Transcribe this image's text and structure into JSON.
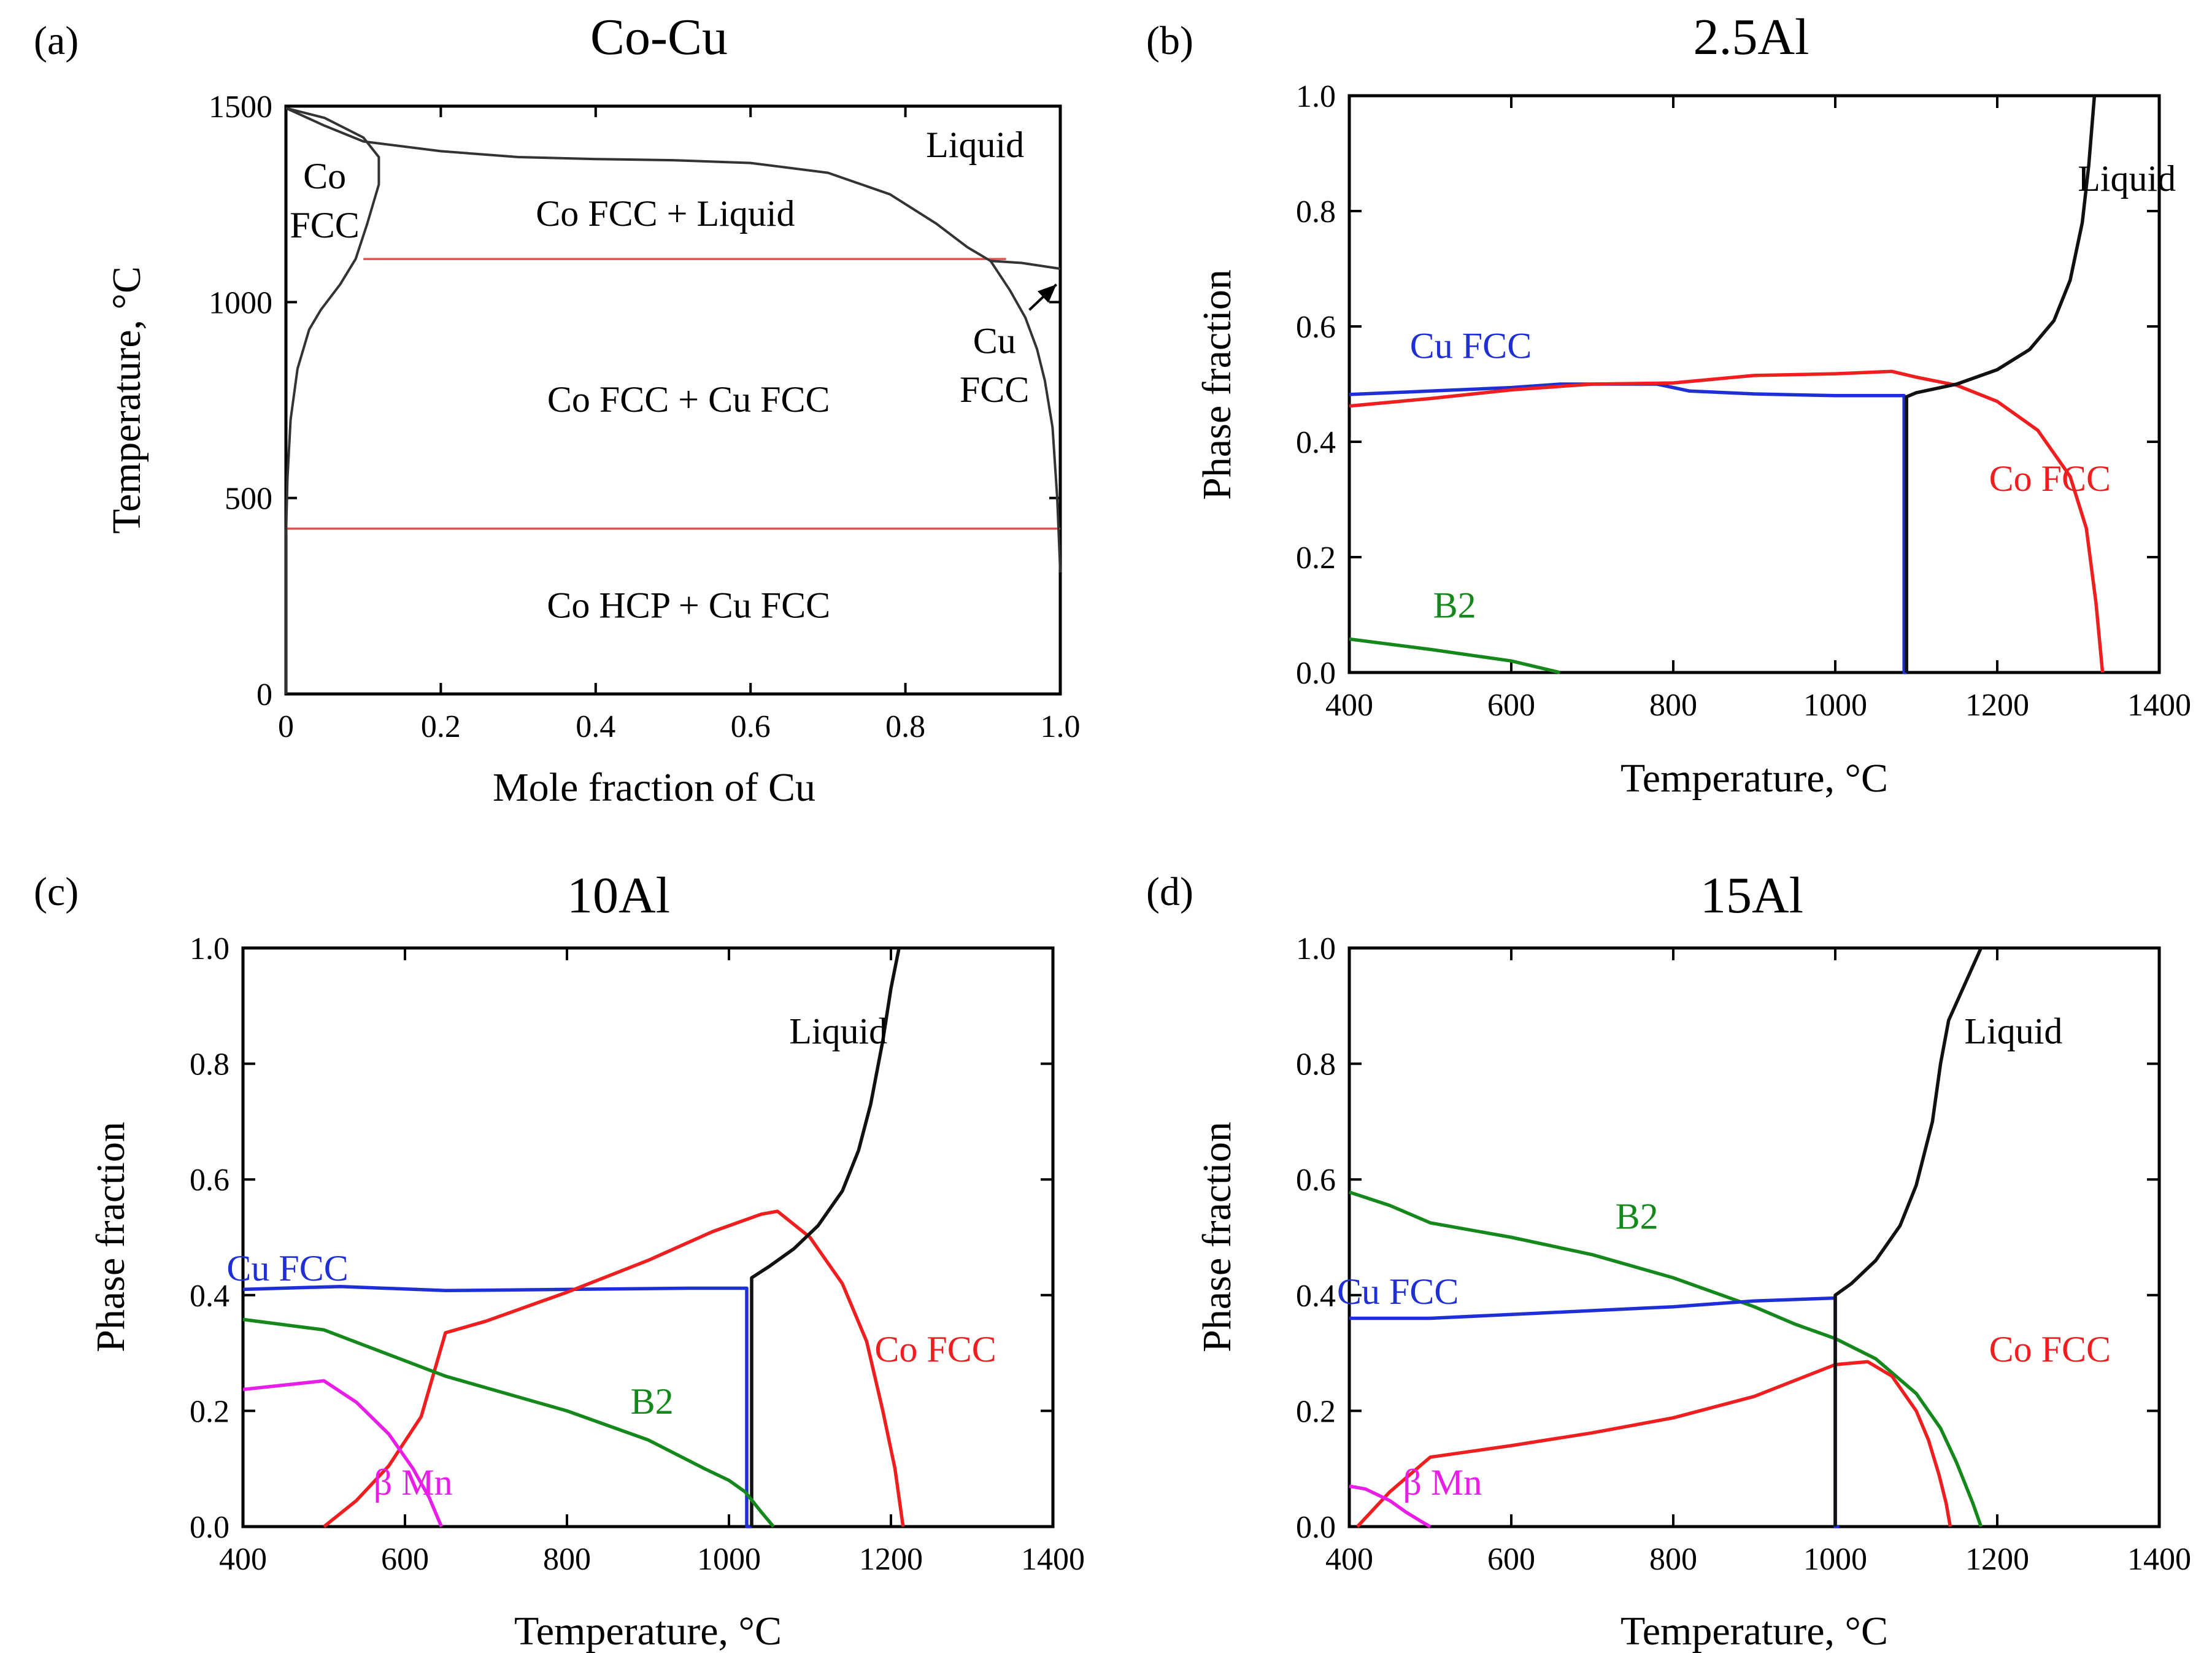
{
  "figure_labels": {
    "a": "(a)",
    "b": "(b)",
    "c": "(c)",
    "d": "(d)"
  },
  "chart_data": [
    {
      "type": "phase_diagram",
      "title": "Co-Cu",
      "xlabel": "Mole fraction of Cu",
      "ylabel": "Temperature, °C",
      "xlim": [
        0,
        1.0
      ],
      "ylim": [
        0,
        1500
      ],
      "xticks": [
        0,
        0.2,
        0.4,
        0.6,
        0.8,
        1.0
      ],
      "xtick_labels": [
        "0",
        "0.2",
        "0.4",
        "0.6",
        "0.8",
        "1.0"
      ],
      "yticks": [
        0,
        500,
        1000,
        1500
      ],
      "ytick_labels": [
        "0",
        "500",
        "1000",
        "1500"
      ],
      "colors": {
        "boundary": "#333333",
        "invariant": "#e05050"
      },
      "region_labels": [
        {
          "text": "Co",
          "x": 0.05,
          "y": 1290
        },
        {
          "text": "FCC",
          "x": 0.05,
          "y": 1165
        },
        {
          "text": "Liquid",
          "x": 0.89,
          "y": 1370
        },
        {
          "text": "Co FCC + Liquid",
          "x": 0.49,
          "y": 1195
        },
        {
          "text": "Co FCC + Cu FCC",
          "x": 0.52,
          "y": 720
        },
        {
          "text": "Co HCP + Cu FCC",
          "x": 0.52,
          "y": 195
        },
        {
          "text": "Cu",
          "x": 0.915,
          "y": 870
        },
        {
          "text": "FCC",
          "x": 0.915,
          "y": 745
        }
      ],
      "boundaries": [
        {
          "name": "liquidus",
          "points": [
            [
              0,
              1495
            ],
            [
              0.05,
              1450
            ],
            [
              0.1,
              1410
            ],
            [
              0.2,
              1385
            ],
            [
              0.3,
              1370
            ],
            [
              0.4,
              1365
            ],
            [
              0.5,
              1362
            ],
            [
              0.6,
              1355
            ],
            [
              0.7,
              1330
            ],
            [
              0.78,
              1275
            ],
            [
              0.84,
              1200
            ],
            [
              0.88,
              1140
            ],
            [
              0.91,
              1105
            ],
            [
              0.95,
              1100
            ],
            [
              1.0,
              1085
            ]
          ]
        },
        {
          "name": "co_fcc_solidus",
          "points": [
            [
              0,
              1495
            ],
            [
              0.05,
              1470
            ],
            [
              0.1,
              1420
            ],
            [
              0.12,
              1370
            ],
            [
              0.12,
              1300
            ],
            [
              0.105,
              1200
            ],
            [
              0.09,
              1110
            ],
            [
              0.07,
              1045
            ],
            [
              0.045,
              980
            ],
            [
              0.03,
              930
            ],
            [
              0.015,
              830
            ],
            [
              0.006,
              700
            ],
            [
              0.002,
              550
            ],
            [
              0,
              400
            ]
          ]
        },
        {
          "name": "cu_fcc_solvus",
          "points": [
            [
              0.91,
              1105
            ],
            [
              0.935,
              1030
            ],
            [
              0.955,
              960
            ],
            [
              0.97,
              880
            ],
            [
              0.98,
              800
            ],
            [
              0.99,
              680
            ],
            [
              0.996,
              500
            ],
            [
              1.0,
              310
            ]
          ]
        },
        {
          "name": "co_hcp_left",
          "points": [
            [
              0,
              420
            ],
            [
              0,
              0
            ]
          ]
        }
      ],
      "invariants": [
        {
          "name": "peritectic",
          "T": 1110,
          "x_from": 0.1,
          "x_to": 0.93
        },
        {
          "name": "allotropic",
          "T": 422,
          "x_from": 0.0,
          "x_to": 1.0
        }
      ],
      "arrow": {
        "from": [
          0.96,
          980
        ],
        "to": [
          0.995,
          1045
        ]
      }
    },
    {
      "type": "line",
      "title": "2.5Al",
      "xlabel": "Temperature, °C",
      "ylabel": "Phase fraction",
      "xlim": [
        400,
        1400
      ],
      "ylim": [
        0,
        1.0
      ],
      "xticks": [
        400,
        600,
        800,
        1000,
        1200,
        1400
      ],
      "xtick_labels": [
        "400",
        "600",
        "800",
        "1000",
        "1200",
        "1400"
      ],
      "yticks": [
        0,
        0.2,
        0.4,
        0.6,
        0.8,
        1.0
      ],
      "ytick_labels": [
        "0.0",
        "0.2",
        "0.4",
        "0.6",
        "0.8",
        "1.0"
      ],
      "series": [
        {
          "name": "Cu FCC",
          "color": "#1f2fd6",
          "label_at": [
            550,
            0.545
          ],
          "x": [
            400,
            500,
            600,
            660,
            780,
            820,
            900,
            1000,
            1085,
            1085,
            1088
          ],
          "y": [
            0.482,
            0.488,
            0.494,
            0.5,
            0.5,
            0.488,
            0.483,
            0.48,
            0.48,
            0.0,
            0.0
          ]
        },
        {
          "name": "Co FCC",
          "color": "#f01e1e",
          "label_at": [
            1265,
            0.315
          ],
          "x": [
            400,
            500,
            600,
            700,
            800,
            900,
            1000,
            1070,
            1100,
            1150,
            1200,
            1250,
            1290,
            1310,
            1322,
            1330
          ],
          "y": [
            0.462,
            0.475,
            0.49,
            0.5,
            0.502,
            0.515,
            0.518,
            0.522,
            0.512,
            0.498,
            0.47,
            0.42,
            0.34,
            0.25,
            0.12,
            0.0
          ]
        },
        {
          "name": "Liquid",
          "color": "#111111",
          "label_at": [
            1360,
            0.835
          ],
          "x": [
            1088,
            1088,
            1100,
            1150,
            1200,
            1240,
            1270,
            1290,
            1305,
            1313,
            1320
          ],
          "y": [
            0.0,
            0.478,
            0.485,
            0.5,
            0.525,
            0.56,
            0.61,
            0.68,
            0.78,
            0.88,
            1.0
          ]
        },
        {
          "name": "B2",
          "color": "#15881c",
          "label_at": [
            530,
            0.095
          ],
          "x": [
            400,
            500,
            600,
            660
          ],
          "y": [
            0.058,
            0.04,
            0.02,
            0.0
          ]
        }
      ]
    },
    {
      "type": "line",
      "title": "10Al",
      "xlabel": "Temperature, °C",
      "ylabel": "Phase fraction",
      "xlim": [
        400,
        1400
      ],
      "ylim": [
        0,
        1.0
      ],
      "xticks": [
        400,
        600,
        800,
        1000,
        1200,
        1400
      ],
      "xtick_labels": [
        "400",
        "600",
        "800",
        "1000",
        "1200",
        "1400"
      ],
      "yticks": [
        0,
        0.2,
        0.4,
        0.6,
        0.8,
        1.0
      ],
      "ytick_labels": [
        "0.0",
        "0.2",
        "0.4",
        "0.6",
        "0.8",
        "1.0"
      ],
      "series": [
        {
          "name": "Cu FCC",
          "color": "#1f2fd6",
          "label_at": [
            455,
            0.425
          ],
          "x": [
            400,
            520,
            650,
            800,
            950,
            1022,
            1022,
            1028
          ],
          "y": [
            0.41,
            0.415,
            0.408,
            0.41,
            0.412,
            0.412,
            0.0,
            0.0
          ]
        },
        {
          "name": "Co FCC",
          "color": "#f01e1e",
          "label_at": [
            1255,
            0.285
          ],
          "x": [
            500,
            540,
            580,
            620,
            650,
            700,
            800,
            900,
            980,
            1040,
            1060,
            1100,
            1140,
            1170,
            1190,
            1205,
            1215
          ],
          "y": [
            0.0,
            0.045,
            0.105,
            0.19,
            0.335,
            0.355,
            0.405,
            0.46,
            0.51,
            0.54,
            0.545,
            0.5,
            0.42,
            0.32,
            0.2,
            0.1,
            0.0
          ]
        },
        {
          "name": "Liquid",
          "color": "#111111",
          "label_at": [
            1135,
            0.835
          ],
          "x": [
            1028,
            1028,
            1050,
            1080,
            1110,
            1140,
            1160,
            1175,
            1190,
            1200,
            1210
          ],
          "y": [
            0.0,
            0.43,
            0.45,
            0.48,
            0.52,
            0.58,
            0.65,
            0.73,
            0.84,
            0.93,
            1.0
          ]
        },
        {
          "name": "B2",
          "color": "#15881c",
          "label_at": [
            905,
            0.195
          ],
          "x": [
            400,
            500,
            650,
            800,
            900,
            970,
            1000,
            1020,
            1040,
            1055
          ],
          "y": [
            0.358,
            0.34,
            0.26,
            0.2,
            0.15,
            0.1,
            0.08,
            0.06,
            0.025,
            0.0
          ]
        },
        {
          "name": "β Mn",
          "color": "#e81ee8",
          "label_at": [
            610,
            0.055
          ],
          "x": [
            400,
            500,
            540,
            580,
            610,
            630,
            645
          ],
          "y": [
            0.237,
            0.252,
            0.215,
            0.16,
            0.1,
            0.05,
            0.0
          ]
        }
      ]
    },
    {
      "type": "line",
      "title": "15Al",
      "xlabel": "Temperature, °C",
      "ylabel": "Phase fraction",
      "xlim": [
        400,
        1400
      ],
      "ylim": [
        0,
        1.0
      ],
      "xticks": [
        400,
        600,
        800,
        1000,
        1200,
        1400
      ],
      "xtick_labels": [
        "400",
        "600",
        "800",
        "1000",
        "1200",
        "1400"
      ],
      "yticks": [
        0,
        0.2,
        0.4,
        0.6,
        0.8,
        1.0
      ],
      "ytick_labels": [
        "0.0",
        "0.2",
        "0.4",
        "0.6",
        "0.8",
        "1.0"
      ],
      "series": [
        {
          "name": "B2",
          "color": "#15881c",
          "label_at": [
            755,
            0.515
          ],
          "x": [
            400,
            450,
            500,
            600,
            700,
            800,
            900,
            950,
            1000,
            1050,
            1100,
            1130,
            1150,
            1170,
            1180
          ],
          "y": [
            0.578,
            0.555,
            0.525,
            0.5,
            0.47,
            0.43,
            0.38,
            0.35,
            0.325,
            0.29,
            0.23,
            0.17,
            0.11,
            0.04,
            0.0
          ]
        },
        {
          "name": "Cu FCC",
          "color": "#1f2fd6",
          "label_at": [
            460,
            0.385
          ],
          "x": [
            400,
            500,
            650,
            800,
            900,
            1000,
            1000,
            1005
          ],
          "y": [
            0.36,
            0.36,
            0.37,
            0.38,
            0.39,
            0.395,
            0.0,
            0.0
          ]
        },
        {
          "name": "Co FCC",
          "color": "#f01e1e",
          "label_at": [
            1265,
            0.285
          ],
          "x": [
            410,
            450,
            500,
            600,
            700,
            800,
            900,
            1000,
            1040,
            1070,
            1100,
            1115,
            1128,
            1137,
            1142
          ],
          "y": [
            0.0,
            0.06,
            0.12,
            0.14,
            0.162,
            0.188,
            0.225,
            0.28,
            0.285,
            0.26,
            0.2,
            0.15,
            0.09,
            0.04,
            0.0
          ]
        },
        {
          "name": "Liquid",
          "color": "#111111",
          "label_at": [
            1220,
            0.835
          ],
          "x": [
            1000,
            1000,
            1020,
            1050,
            1080,
            1100,
            1120,
            1130,
            1140,
            1180
          ],
          "y": [
            0.0,
            0.4,
            0.42,
            0.46,
            0.52,
            0.59,
            0.7,
            0.8,
            0.875,
            1.0
          ]
        },
        {
          "name": "β Mn",
          "color": "#e81ee8",
          "label_at": [
            515,
            0.055
          ],
          "x": [
            400,
            420,
            450,
            470,
            490,
            500
          ],
          "y": [
            0.07,
            0.065,
            0.045,
            0.025,
            0.008,
            0.0
          ]
        }
      ]
    }
  ]
}
